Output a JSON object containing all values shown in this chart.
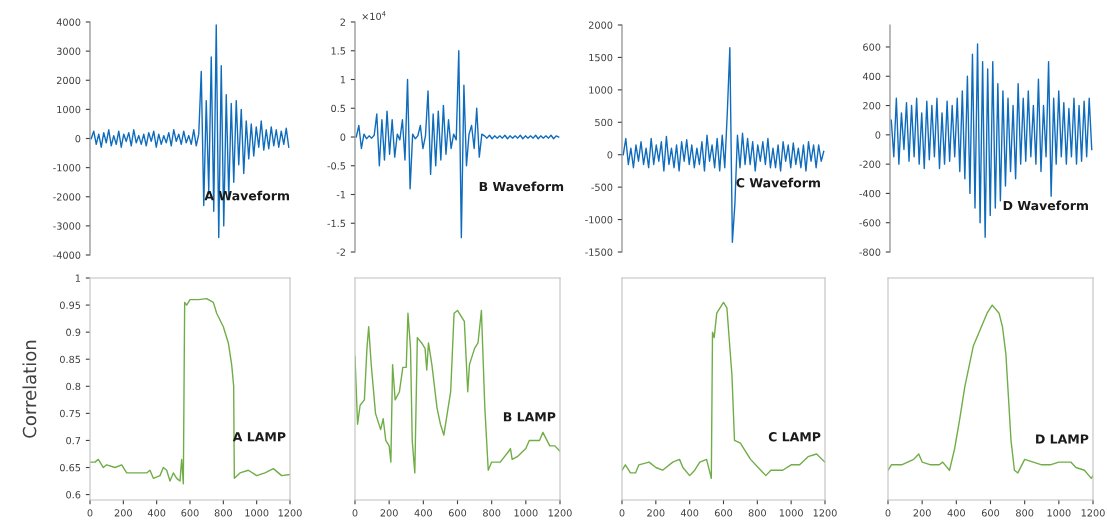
{
  "chart_data": [
    {
      "type": "line",
      "categories": [
        null,
        null,
        null,
        null,
        null,
        null,
        null,
        null,
        null,
        null,
        null,
        null,
        null,
        null,
        null,
        null,
        null,
        null,
        null,
        null,
        null,
        null,
        null,
        null,
        null,
        null,
        null,
        null,
        null,
        null,
        null,
        null,
        null,
        null,
        null,
        null,
        null,
        null,
        null,
        null,
        null,
        null,
        null,
        null,
        null,
        null,
        null,
        null,
        null,
        null,
        null,
        null,
        null,
        null,
        null,
        null,
        null,
        null,
        null,
        null,
        null,
        null,
        null,
        null,
        null,
        null,
        null,
        null,
        null,
        null,
        null,
        null,
        null,
        null,
        null,
        null,
        null,
        null,
        null,
        null
      ],
      "series": [
        {
          "color": "#0f6cbd",
          "values": [
            0,
            250,
            -200,
            150,
            -300,
            200,
            -150,
            300,
            -250,
            100,
            -200,
            250,
            -300,
            150,
            -100,
            200,
            -250,
            300,
            -150,
            100,
            -200,
            150,
            -250,
            200,
            -100,
            250,
            -300,
            150,
            -200,
            100,
            -150,
            200,
            -250,
            300,
            -100,
            150,
            -200,
            250,
            -150,
            100,
            -200,
            300,
            -250,
            150,
            2300,
            -2300,
            1300,
            -1800,
            2800,
            -2500,
            3900,
            -3400,
            2500,
            -3000,
            1500,
            -2000,
            1200,
            -1500,
            1300,
            -900,
            1000,
            -1200,
            600,
            -700,
            500,
            -600,
            400,
            -300,
            600,
            -400,
            300,
            -350,
            400,
            -250,
            300,
            -300,
            250,
            -200,
            350,
            -300
          ]
        }
      ],
      "ylim": [
        -4000,
        4000
      ],
      "yticks": [
        -4000,
        -3000,
        -2000,
        -1000,
        0,
        1000,
        2000,
        3000,
        4000
      ],
      "tick_labels": "y",
      "annotations": [
        "A Waveform"
      ]
    },
    {
      "type": "line",
      "categories": [
        null,
        null,
        null,
        null,
        null,
        null,
        null,
        null,
        null,
        null,
        null,
        null,
        null,
        null,
        null,
        null,
        null,
        null,
        null,
        null,
        null,
        null,
        null,
        null,
        null,
        null,
        null,
        null,
        null,
        null,
        null,
        null,
        null,
        null,
        null,
        null,
        null,
        null,
        null,
        null,
        null,
        null,
        null,
        null,
        null,
        null,
        null,
        null,
        null,
        null,
        null,
        null,
        null,
        null,
        null,
        null,
        null,
        null,
        null,
        null,
        null,
        null,
        null,
        null,
        null,
        null,
        null,
        null,
        null,
        null,
        null,
        null,
        null,
        null,
        null,
        null,
        null,
        null,
        null,
        null
      ],
      "series": [
        {
          "color": "#0f6cbd",
          "values": [
            0,
            0.2,
            -0.2,
            0.05,
            -0.03,
            0.02,
            -0.02,
            0.03,
            0.4,
            -0.5,
            0.3,
            -0.4,
            0.45,
            -0.3,
            0.3,
            -0.35,
            0.05,
            -0.05,
            0.3,
            -0.4,
            1.0,
            -0.9,
            0.05,
            -0.03,
            0.02,
            0.2,
            -0.2,
            0.02,
            0.8,
            -0.65,
            0.4,
            -0.5,
            0.45,
            -0.4,
            0.55,
            -0.3,
            0.3,
            -0.2,
            0.05,
            -0.05,
            1.5,
            -1.75,
            0.9,
            -0.5,
            0.05,
            0.2,
            -0.2,
            0.5,
            -0.35,
            0.05,
            0.02,
            -0.02,
            0.03,
            -0.03,
            0.02,
            -0.02,
            0.02,
            -0.02,
            0.03,
            -0.03,
            0.02,
            -0.02,
            0.02,
            -0.02,
            0.03,
            -0.03,
            0.02,
            -0.02,
            0.02,
            -0.02,
            0.03,
            -0.03,
            0.02,
            -0.02,
            0.02,
            -0.02,
            0.03,
            -0.03,
            0.02,
            0
          ]
        }
      ],
      "ylim": [
        -2,
        2
      ],
      "yticks": [
        -2,
        -1.5,
        -1,
        -0.5,
        0,
        0.5,
        1,
        1.5,
        2
      ],
      "tick_labels": "y",
      "annotations": [
        "×10$^{4}$",
        "B Waveform"
      ]
    },
    {
      "type": "line",
      "categories": [
        null,
        null,
        null,
        null,
        null,
        null,
        null,
        null,
        null,
        null,
        null,
        null,
        null,
        null,
        null,
        null,
        null,
        null,
        null,
        null,
        null,
        null,
        null,
        null,
        null,
        null,
        null,
        null,
        null,
        null,
        null,
        null,
        null,
        null,
        null,
        null,
        null,
        null,
        null,
        null,
        null,
        null,
        null,
        null,
        null,
        null,
        null,
        null,
        null,
        null,
        null,
        null,
        null,
        null,
        null,
        null,
        null,
        null,
        null,
        null,
        null,
        null,
        null,
        null,
        null,
        null,
        null,
        null,
        null,
        null,
        null,
        null,
        null,
        null,
        null,
        null,
        null,
        null,
        null,
        null
      ],
      "series": [
        {
          "color": "#0f6cbd",
          "values": [
            0,
            250,
            -150,
            100,
            -200,
            150,
            -100,
            200,
            -150,
            100,
            -200,
            250,
            -150,
            150,
            -100,
            200,
            -250,
            280,
            -150,
            100,
            -200,
            150,
            -250,
            200,
            -100,
            230,
            -150,
            150,
            -200,
            100,
            -150,
            200,
            -250,
            300,
            -100,
            150,
            -200,
            250,
            -250,
            300,
            -200,
            650,
            1650,
            -1350,
            -750,
            300,
            -200,
            330,
            -150,
            250,
            -150,
            200,
            -250,
            150,
            -100,
            200,
            -150,
            250,
            -200,
            100,
            -200,
            150,
            -250,
            200,
            -100,
            150,
            -200,
            180,
            -150,
            100,
            -200,
            150,
            -250,
            200,
            -100,
            150,
            -200,
            150,
            -100,
            50
          ]
        }
      ],
      "ylim": [
        -1500,
        2000
      ],
      "yticks": [
        -1500,
        -1000,
        -500,
        0,
        500,
        1000,
        1500,
        2000
      ],
      "tick_labels": "y",
      "annotations": [
        "C Waveform"
      ]
    },
    {
      "type": "line",
      "categories": [
        null,
        null,
        null,
        null,
        null,
        null,
        null,
        null,
        null,
        null,
        null,
        null,
        null,
        null,
        null,
        null,
        null,
        null,
        null,
        null,
        null,
        null,
        null,
        null,
        null,
        null,
        null,
        null,
        null,
        null,
        null,
        null,
        null,
        null,
        null,
        null,
        null,
        null,
        null,
        null,
        null,
        null,
        null,
        null,
        null,
        null,
        null,
        null,
        null,
        null,
        null,
        null,
        null,
        null,
        null,
        null,
        null,
        null,
        null,
        null,
        null,
        null,
        null,
        null,
        null,
        null,
        null,
        null,
        null,
        null,
        null,
        null,
        null,
        null,
        null,
        null,
        null,
        null,
        null,
        null
      ],
      "series": [
        {
          "color": "#0f6cbd",
          "values": [
            100,
            -150,
            250,
            -200,
            150,
            -100,
            220,
            -180,
            200,
            -150,
            250,
            -200,
            150,
            -230,
            230,
            -170,
            200,
            -150,
            250,
            -230,
            150,
            -200,
            230,
            -180,
            200,
            -150,
            250,
            -250,
            300,
            -300,
            400,
            -400,
            550,
            -500,
            620,
            -600,
            500,
            -700,
            450,
            -550,
            500,
            -500,
            350,
            -450,
            300,
            -350,
            250,
            -250,
            200,
            -300,
            350,
            -200,
            250,
            -180,
            300,
            -150,
            200,
            -200,
            380,
            -250,
            200,
            -150,
            500,
            -420,
            250,
            -200,
            300,
            -150,
            220,
            -200,
            180,
            -150,
            250,
            -200,
            200,
            -180,
            230,
            -150,
            250,
            -100
          ]
        }
      ],
      "ylim": [
        -800,
        750
      ],
      "yticks": [
        -800,
        -600,
        -400,
        -200,
        0,
        200,
        400,
        600
      ],
      "tick_labels": "y",
      "annotations": [
        "D Waveform"
      ]
    },
    {
      "type": "line",
      "ylabel": "Correlation",
      "xlim": [
        0,
        1200
      ],
      "xticks": [
        0,
        200,
        400,
        600,
        800,
        1000,
        1200
      ],
      "ylim": [
        0.59,
        1
      ],
      "yticks": [
        0.6,
        0.65,
        0.7,
        0.75,
        0.8,
        0.85,
        0.9,
        0.95,
        1
      ],
      "series": [
        {
          "color": "#70ad47",
          "x": [
            0,
            30,
            50,
            80,
            100,
            150,
            190,
            220,
            260,
            300,
            340,
            360,
            380,
            420,
            440,
            460,
            480,
            500,
            520,
            540,
            550,
            560,
            568,
            580,
            600,
            650,
            700,
            740,
            760,
            800,
            830,
            850,
            862,
            866,
            900,
            950,
            1000,
            1050,
            1100,
            1150,
            1200
          ],
          "values": [
            0.66,
            0.66,
            0.665,
            0.65,
            0.655,
            0.65,
            0.655,
            0.64,
            0.64,
            0.64,
            0.64,
            0.645,
            0.63,
            0.635,
            0.65,
            0.645,
            0.625,
            0.64,
            0.63,
            0.625,
            0.665,
            0.62,
            0.955,
            0.95,
            0.96,
            0.96,
            0.962,
            0.955,
            0.935,
            0.91,
            0.88,
            0.84,
            0.8,
            0.63,
            0.64,
            0.645,
            0.635,
            0.64,
            0.648,
            0.635,
            0.637
          ]
        }
      ],
      "annotations": [
        "A LAMP"
      ]
    },
    {
      "type": "line",
      "xlim": [
        0,
        1200
      ],
      "xticks": [
        0,
        200,
        400,
        600,
        800,
        1000,
        1200
      ],
      "ylim": [
        0.59,
        1
      ],
      "yticks": [
        0.6,
        0.65,
        0.7,
        0.75,
        0.8,
        0.85,
        0.9,
        0.95,
        1
      ],
      "tick_labels": "x",
      "series": [
        {
          "color": "#70ad47",
          "x": [
            0,
            15,
            30,
            55,
            70,
            80,
            95,
            120,
            150,
            165,
            180,
            200,
            210,
            220,
            235,
            260,
            280,
            300,
            310,
            325,
            335,
            350,
            365,
            390,
            410,
            420,
            430,
            450,
            480,
            500,
            520,
            540,
            560,
            580,
            600,
            620,
            640,
            660,
            670,
            700,
            720,
            740,
            760,
            780,
            800,
            850,
            900,
            910,
            920,
            950,
            1000,
            1020,
            1080,
            1100,
            1140,
            1170,
            1200
          ],
          "values": [
            0.855,
            0.73,
            0.765,
            0.775,
            0.87,
            0.91,
            0.84,
            0.75,
            0.72,
            0.74,
            0.7,
            0.69,
            0.66,
            0.84,
            0.775,
            0.79,
            0.835,
            0.835,
            0.935,
            0.87,
            0.7,
            0.64,
            0.89,
            0.88,
            0.87,
            0.83,
            0.88,
            0.84,
            0.76,
            0.73,
            0.71,
            0.75,
            0.79,
            0.935,
            0.94,
            0.93,
            0.92,
            0.79,
            0.84,
            0.87,
            0.88,
            0.94,
            0.76,
            0.645,
            0.66,
            0.66,
            0.68,
            0.685,
            0.665,
            0.67,
            0.685,
            0.7,
            0.7,
            0.715,
            0.69,
            0.69,
            0.68
          ]
        }
      ],
      "annotations": [
        "B LAMP"
      ]
    },
    {
      "type": "line",
      "xlim": [
        0,
        1200
      ],
      "xticks": [
        0,
        200,
        400,
        600,
        800,
        1000,
        1200
      ],
      "ylim": [
        0.59,
        1
      ],
      "yticks": [
        0.6,
        0.65,
        0.7,
        0.75,
        0.8,
        0.85,
        0.9,
        0.95,
        1
      ],
      "tick_labels": "x",
      "series": [
        {
          "color": "#70ad47",
          "x": [
            0,
            20,
            50,
            80,
            100,
            160,
            200,
            240,
            300,
            340,
            360,
            400,
            430,
            460,
            500,
            528,
            535,
            545,
            560,
            600,
            620,
            650,
            665,
            700,
            720,
            760,
            820,
            850,
            880,
            950,
            1000,
            1050,
            1100,
            1150,
            1200
          ],
          "values": [
            0.645,
            0.655,
            0.64,
            0.64,
            0.655,
            0.66,
            0.65,
            0.645,
            0.66,
            0.665,
            0.65,
            0.635,
            0.645,
            0.66,
            0.665,
            0.63,
            0.9,
            0.89,
            0.935,
            0.955,
            0.945,
            0.82,
            0.7,
            0.695,
            0.685,
            0.665,
            0.645,
            0.635,
            0.645,
            0.645,
            0.655,
            0.655,
            0.67,
            0.675,
            0.66
          ]
        }
      ],
      "annotations": [
        "C LAMP"
      ]
    },
    {
      "type": "line",
      "xlim": [
        0,
        1200
      ],
      "xticks": [
        0,
        200,
        400,
        600,
        800,
        1000,
        1200
      ],
      "ylim": [
        0.59,
        1
      ],
      "yticks": [
        0.6,
        0.65,
        0.7,
        0.75,
        0.8,
        0.85,
        0.9,
        0.95,
        1
      ],
      "tick_labels": "x",
      "series": [
        {
          "color": "#70ad47",
          "x": [
            0,
            20,
            80,
            150,
            180,
            200,
            250,
            300,
            320,
            360,
            390,
            420,
            450,
            500,
            540,
            580,
            610,
            650,
            670,
            690,
            720,
            740,
            760,
            800,
            850,
            900,
            950,
            1000,
            1070,
            1100,
            1150,
            1190,
            1200
          ],
          "values": [
            0.645,
            0.655,
            0.655,
            0.665,
            0.675,
            0.66,
            0.655,
            0.655,
            0.66,
            0.645,
            0.685,
            0.74,
            0.8,
            0.875,
            0.905,
            0.935,
            0.95,
            0.935,
            0.91,
            0.86,
            0.7,
            0.645,
            0.64,
            0.665,
            0.66,
            0.655,
            0.655,
            0.66,
            0.66,
            0.65,
            0.645,
            0.63,
            0.635
          ]
        }
      ],
      "annotations": [
        "D LAMP"
      ]
    }
  ]
}
